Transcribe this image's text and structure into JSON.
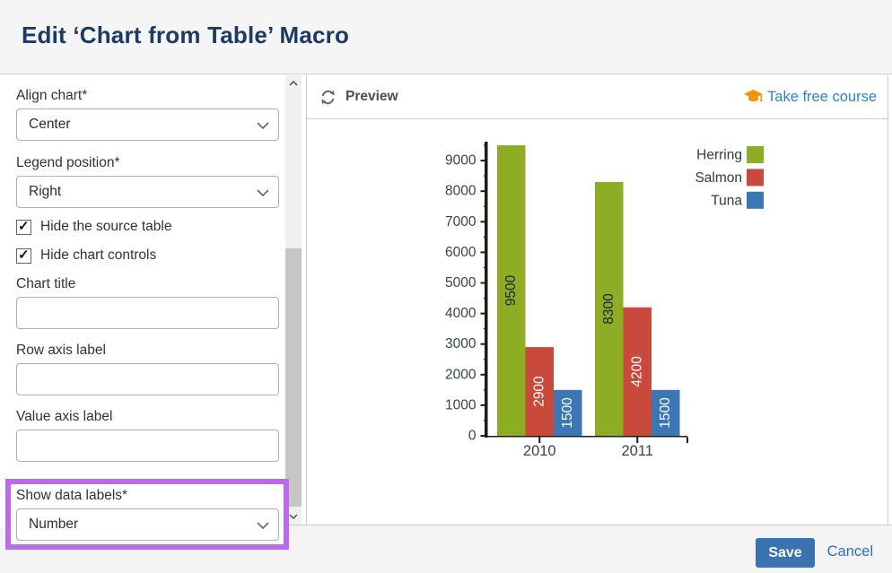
{
  "header": {
    "title": "Edit ‘Chart from Table’ Macro"
  },
  "form": {
    "align_chart": {
      "label": "Align chart*",
      "value": "Center"
    },
    "legend_position": {
      "label": "Legend position*",
      "value": "Right"
    },
    "hide_source_table": {
      "label": "Hide the source table",
      "checked": true
    },
    "hide_chart_controls": {
      "label": "Hide chart controls",
      "checked": true
    },
    "chart_title": {
      "label": "Chart title",
      "value": ""
    },
    "row_axis_label": {
      "label": "Row axis label",
      "value": ""
    },
    "value_axis_label": {
      "label": "Value axis label",
      "value": ""
    },
    "show_data_labels": {
      "label": "Show data labels*",
      "value": "Number",
      "highlighted": true,
      "highlight_color": "#bd6ae6"
    }
  },
  "preview": {
    "title": "Preview",
    "course_link": "Take free course",
    "link_color": "#2e82cd",
    "cap_color": "#f39200"
  },
  "footer": {
    "save": "Save",
    "cancel": "Cancel",
    "save_color": "#3b73b1"
  },
  "icons": {
    "checkmark": "✓"
  },
  "chart_data": {
    "type": "bar",
    "categories": [
      "2010",
      "2011"
    ],
    "series": [
      {
        "name": "Herring",
        "color": "#8dad25",
        "label_color": "#1e2430",
        "values": [
          9500,
          8300
        ]
      },
      {
        "name": "Salmon",
        "color": "#c94a3c",
        "label_color": "#ffffff",
        "values": [
          2900,
          4200
        ]
      },
      {
        "name": "Tuna",
        "color": "#3c76b4",
        "label_color": "#ffffff",
        "values": [
          1500,
          1500
        ]
      }
    ],
    "title": "",
    "xlabel": "",
    "ylabel": "",
    "ylim": [
      0,
      9560
    ],
    "ytick_major": 1000,
    "ytick_minor": 500,
    "grid": false,
    "legend_position": "right",
    "data_labels": "number",
    "axis_color": "#1b1b1b",
    "tick_label_color": "#3a4150"
  }
}
